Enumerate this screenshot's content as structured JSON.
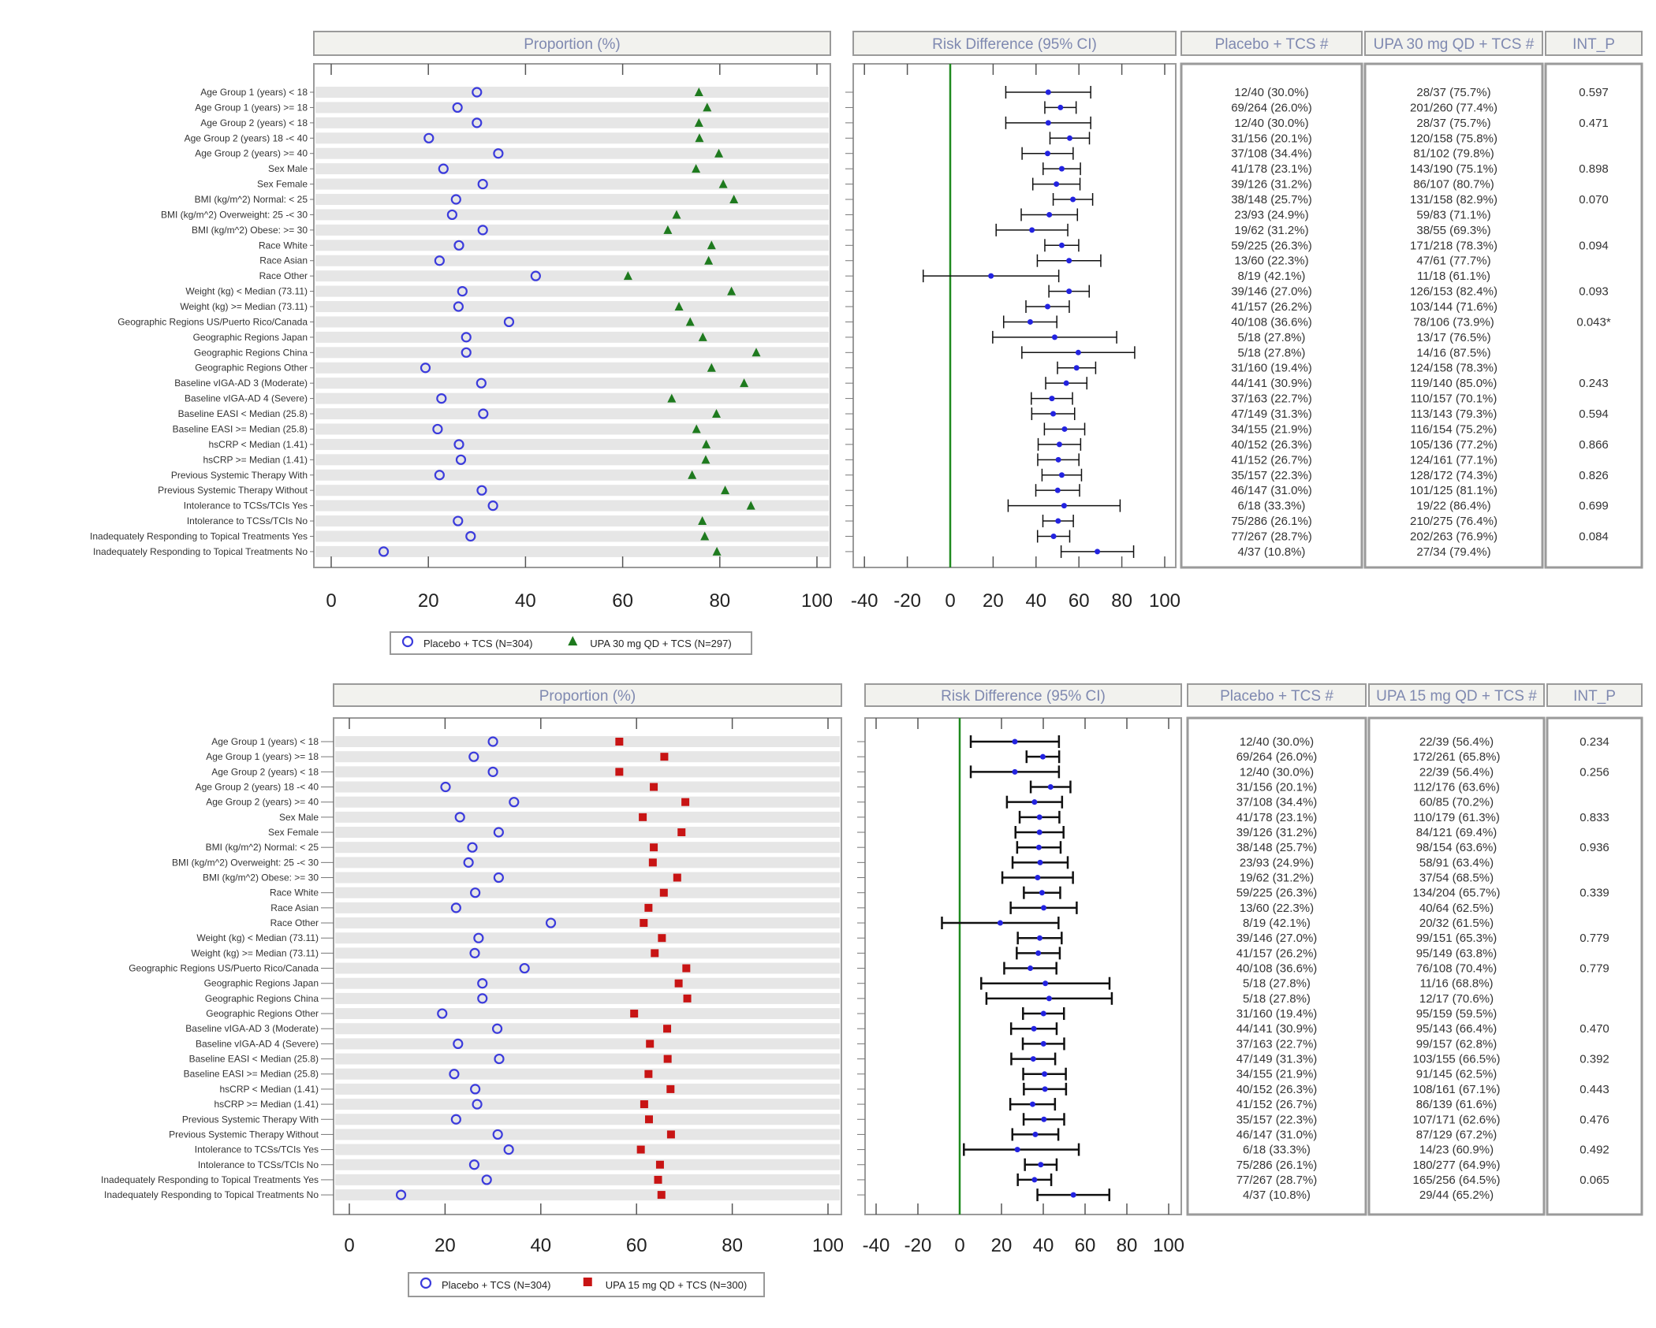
{
  "chart_data": [
    {
      "type": "forest",
      "panel_headers": {
        "proportion": "Proportion (%)",
        "risk_difference": "Risk Difference (95% CI)",
        "col_placebo": "Placebo + TCS #",
        "col_active": "UPA 30 mg QD + TCS #",
        "col_int_p": "INT_P"
      },
      "proportion_axis": {
        "ticks": [
          "0",
          "20",
          "40",
          "60",
          "80",
          "100"
        ],
        "xlim": [
          0,
          100
        ]
      },
      "rd_axis": {
        "ticks": [
          "-40",
          "-20",
          "0",
          "20",
          "40",
          "60",
          "80",
          "100"
        ],
        "xlim": [
          -45,
          105
        ],
        "reference_line": 0
      },
      "legend": {
        "placebo": "Placebo + TCS (N=304)",
        "active": "UPA 30 mg QD + TCS (N=297)"
      },
      "colors": {
        "placebo": "#3b3bdc",
        "active": "#1e7a1e",
        "rd_point": "#2323e0",
        "reference": "#1f8a1f",
        "band": "#e6e6e6"
      },
      "markers": {
        "placebo": "open-circle",
        "active": "triangle"
      },
      "rows": [
        {
          "label": "Age Group 1 (years) < 18",
          "placebo": "12/40 (30.0%)",
          "active": "28/37 (75.7%)",
          "rd": [
            45.7,
            25.9,
            65.5
          ],
          "int_p": "0.597"
        },
        {
          "label": "Age Group 1 (years) >= 18",
          "placebo": "69/264 (26.0%)",
          "active": "201/260 (77.4%)",
          "rd": [
            51.4,
            44.1,
            58.7
          ],
          "int_p": ""
        },
        {
          "label": "Age Group 2 (years) < 18",
          "placebo": "12/40 (30.0%)",
          "active": "28/37 (75.7%)",
          "rd": [
            45.7,
            25.9,
            65.5
          ],
          "int_p": "0.471"
        },
        {
          "label": "Age Group 2 (years) 18 -< 40",
          "placebo": "31/156 (20.1%)",
          "active": "120/158 (75.8%)",
          "rd": [
            55.7,
            46.5,
            64.9
          ],
          "int_p": ""
        },
        {
          "label": "Age Group 2 (years) >= 40",
          "placebo": "37/108 (34.4%)",
          "active": "81/102 (79.8%)",
          "rd": [
            45.4,
            33.5,
            57.3
          ],
          "int_p": ""
        },
        {
          "label": "Sex Male",
          "placebo": "41/178 (23.1%)",
          "active": "143/190 (75.1%)",
          "rd": [
            52.0,
            43.3,
            60.7
          ],
          "int_p": "0.898"
        },
        {
          "label": "Sex Female",
          "placebo": "39/126 (31.2%)",
          "active": "86/107 (80.7%)",
          "rd": [
            49.5,
            38.5,
            60.5
          ],
          "int_p": ""
        },
        {
          "label": "BMI (kg/m^2) Normal: < 25",
          "placebo": "38/148 (25.7%)",
          "active": "131/158 (82.9%)",
          "rd": [
            57.2,
            48.0,
            66.4
          ],
          "int_p": "0.070"
        },
        {
          "label": "BMI (kg/m^2) Overweight: 25 -< 30",
          "placebo": "23/93 (24.9%)",
          "active": "59/83 (71.1%)",
          "rd": [
            46.2,
            33.1,
            59.3
          ],
          "int_p": ""
        },
        {
          "label": "BMI (kg/m^2) Obese: >= 30",
          "placebo": "19/62 (31.2%)",
          "active": "38/55 (69.3%)",
          "rd": [
            38.1,
            21.4,
            54.8
          ],
          "int_p": ""
        },
        {
          "label": "Race White",
          "placebo": "59/225 (26.3%)",
          "active": "171/218 (78.3%)",
          "rd": [
            52.0,
            44.1,
            59.9
          ],
          "int_p": "0.094"
        },
        {
          "label": "Race Asian",
          "placebo": "13/60 (22.3%)",
          "active": "47/61 (77.7%)",
          "rd": [
            55.4,
            40.6,
            70.2
          ],
          "int_p": ""
        },
        {
          "label": "Race Other",
          "placebo": "8/19 (42.1%)",
          "active": "11/18 (61.1%)",
          "rd": [
            19.0,
            -12.6,
            50.6
          ],
          "int_p": ""
        },
        {
          "label": "Weight (kg) < Median (73.11)",
          "placebo": "39/146 (27.0%)",
          "active": "126/153 (82.4%)",
          "rd": [
            55.4,
            46.0,
            64.8
          ],
          "int_p": "0.093"
        },
        {
          "label": "Weight (kg) >= Median (73.11)",
          "placebo": "41/157 (26.2%)",
          "active": "103/144 (71.6%)",
          "rd": [
            45.4,
            35.3,
            55.5
          ],
          "int_p": ""
        },
        {
          "label": "Geographic Regions US/Puerto Rico/Canada",
          "placebo": "40/108 (36.6%)",
          "active": "78/106 (73.9%)",
          "rd": [
            37.3,
            24.9,
            49.7
          ],
          "int_p": "0.043*"
        },
        {
          "label": "Geographic Regions Japan",
          "placebo": "5/18 (27.8%)",
          "active": "13/17 (76.5%)",
          "rd": [
            48.7,
            19.8,
            77.6
          ],
          "int_p": ""
        },
        {
          "label": "Geographic Regions China",
          "placebo": "5/18 (27.8%)",
          "active": "14/16 (87.5%)",
          "rd": [
            59.7,
            33.4,
            86.0
          ],
          "int_p": ""
        },
        {
          "label": "Geographic Regions Other",
          "placebo": "31/160 (19.4%)",
          "active": "124/158 (78.3%)",
          "rd": [
            58.9,
            50.0,
            67.8
          ],
          "int_p": ""
        },
        {
          "label": "Baseline vIGA-AD 3 (Moderate)",
          "placebo": "44/141 (30.9%)",
          "active": "119/140 (85.0%)",
          "rd": [
            54.1,
            44.5,
            63.7
          ],
          "int_p": "0.243"
        },
        {
          "label": "Baseline vIGA-AD 4 (Severe)",
          "placebo": "37/163 (22.7%)",
          "active": "110/157 (70.1%)",
          "rd": [
            47.4,
            37.8,
            57.0
          ],
          "int_p": ""
        },
        {
          "label": "Baseline EASI < Median (25.8)",
          "placebo": "47/149 (31.3%)",
          "active": "113/143 (79.3%)",
          "rd": [
            48.0,
            38.0,
            58.0
          ],
          "int_p": "0.594"
        },
        {
          "label": "Baseline EASI >= Median (25.8)",
          "placebo": "34/155 (21.9%)",
          "active": "116/154 (75.2%)",
          "rd": [
            53.3,
            43.9,
            62.7
          ],
          "int_p": ""
        },
        {
          "label": "hsCRP < Median (1.41)",
          "placebo": "40/152 (26.3%)",
          "active": "105/136 (77.2%)",
          "rd": [
            50.9,
            41.0,
            60.8
          ],
          "int_p": "0.866"
        },
        {
          "label": "hsCRP >= Median (1.41)",
          "placebo": "41/152 (26.7%)",
          "active": "124/161 (77.1%)",
          "rd": [
            50.4,
            40.8,
            60.0
          ],
          "int_p": ""
        },
        {
          "label": "Previous Systemic Therapy With",
          "placebo": "35/157 (22.3%)",
          "active": "128/172 (74.3%)",
          "rd": [
            52.0,
            42.8,
            61.2
          ],
          "int_p": "0.826"
        },
        {
          "label": "Previous Systemic Therapy Without",
          "placebo": "46/147 (31.0%)",
          "active": "101/125 (81.1%)",
          "rd": [
            50.1,
            39.9,
            60.3
          ],
          "int_p": ""
        },
        {
          "label": "Intolerance to TCSs/TCIs Yes",
          "placebo": "6/18 (33.3%)",
          "active": "19/22 (86.4%)",
          "rd": [
            53.1,
            27.0,
            79.2
          ],
          "int_p": "0.699"
        },
        {
          "label": "Intolerance to TCSs/TCIs No",
          "placebo": "75/286 (26.1%)",
          "active": "210/275 (76.4%)",
          "rd": [
            50.3,
            43.2,
            57.4
          ],
          "int_p": ""
        },
        {
          "label": "Inadequately Responding to Topical Treatments Yes",
          "placebo": "77/267 (28.7%)",
          "active": "202/263 (76.9%)",
          "rd": [
            48.2,
            40.7,
            55.7
          ],
          "int_p": "0.084"
        },
        {
          "label": "Inadequately Responding to Topical Treatments No",
          "placebo": "4/37 (10.8%)",
          "active": "27/34 (79.4%)",
          "rd": [
            68.6,
            51.7,
            85.5
          ],
          "int_p": ""
        }
      ]
    },
    {
      "type": "forest",
      "panel_headers": {
        "proportion": "Proportion (%)",
        "risk_difference": "Risk Difference (95% CI)",
        "col_placebo": "Placebo + TCS #",
        "col_active": "UPA 15 mg QD + TCS #",
        "col_int_p": "INT_P"
      },
      "proportion_axis": {
        "ticks": [
          "0",
          "20",
          "40",
          "60",
          "80",
          "100"
        ],
        "xlim": [
          0,
          100
        ]
      },
      "rd_axis": {
        "ticks": [
          "-40",
          "-20",
          "0",
          "20",
          "40",
          "60",
          "80",
          "100"
        ],
        "xlim": [
          -45,
          105
        ],
        "reference_line": 0
      },
      "legend": {
        "placebo": "Placebo + TCS (N=304)",
        "active": "UPA 15 mg QD + TCS (N=300)"
      },
      "colors": {
        "placebo": "#3b3bdc",
        "active": "#c81414",
        "rd_point": "#2323e0",
        "reference": "#1f8a1f",
        "band": "#e6e6e6"
      },
      "markers": {
        "placebo": "open-circle",
        "active": "square"
      },
      "rows": [
        {
          "label": "Age Group 1 (years) < 18",
          "placebo": "12/40 (30.0%)",
          "active": "22/39 (56.4%)",
          "rd": [
            26.4,
            5.3,
            47.5
          ],
          "int_p": "0.234"
        },
        {
          "label": "Age Group 1 (years) >= 18",
          "placebo": "69/264 (26.0%)",
          "active": "172/261 (65.8%)",
          "rd": [
            39.8,
            32.0,
            47.6
          ],
          "int_p": ""
        },
        {
          "label": "Age Group 2 (years) < 18",
          "placebo": "12/40 (30.0%)",
          "active": "22/39 (56.4%)",
          "rd": [
            26.4,
            5.3,
            47.5
          ],
          "int_p": "0.256"
        },
        {
          "label": "Age Group 2 (years) 18 -< 40",
          "placebo": "31/156 (20.1%)",
          "active": "112/176 (63.6%)",
          "rd": [
            43.5,
            34.0,
            53.0
          ],
          "int_p": ""
        },
        {
          "label": "Age Group 2 (years) >= 40",
          "placebo": "37/108 (34.4%)",
          "active": "60/85 (70.2%)",
          "rd": [
            35.8,
            22.6,
            49.0
          ],
          "int_p": ""
        },
        {
          "label": "Sex Male",
          "placebo": "41/178 (23.1%)",
          "active": "110/179 (61.3%)",
          "rd": [
            38.2,
            28.7,
            47.7
          ],
          "int_p": "0.833"
        },
        {
          "label": "Sex Female",
          "placebo": "39/126 (31.2%)",
          "active": "84/121 (69.4%)",
          "rd": [
            38.2,
            26.7,
            49.7
          ],
          "int_p": ""
        },
        {
          "label": "BMI (kg/m^2) Normal: < 25",
          "placebo": "38/148 (25.7%)",
          "active": "98/154 (63.6%)",
          "rd": [
            37.9,
            27.5,
            48.3
          ],
          "int_p": "0.936"
        },
        {
          "label": "BMI (kg/m^2) Overweight: 25 -< 30",
          "placebo": "23/93 (24.9%)",
          "active": "58/91 (63.4%)",
          "rd": [
            38.5,
            25.3,
            51.7
          ],
          "int_p": ""
        },
        {
          "label": "BMI (kg/m^2) Obese: >= 30",
          "placebo": "19/62 (31.2%)",
          "active": "37/54 (68.5%)",
          "rd": [
            37.3,
            20.4,
            54.2
          ],
          "int_p": ""
        },
        {
          "label": "Race White",
          "placebo": "59/225 (26.3%)",
          "active": "134/204 (65.7%)",
          "rd": [
            39.4,
            30.7,
            48.1
          ],
          "int_p": "0.339"
        },
        {
          "label": "Race Asian",
          "placebo": "13/60 (22.3%)",
          "active": "40/64 (62.5%)",
          "rd": [
            40.2,
            24.4,
            56.0
          ],
          "int_p": ""
        },
        {
          "label": "Race Other",
          "placebo": "8/19 (42.1%)",
          "active": "20/32 (61.5%)",
          "rd": [
            19.4,
            -8.5,
            47.3
          ],
          "int_p": ""
        },
        {
          "label": "Weight (kg) < Median (73.11)",
          "placebo": "39/146 (27.0%)",
          "active": "99/151 (65.3%)",
          "rd": [
            38.3,
            27.8,
            48.8
          ],
          "int_p": "0.779"
        },
        {
          "label": "Weight (kg) >= Median (73.11)",
          "placebo": "41/157 (26.2%)",
          "active": "95/149 (63.8%)",
          "rd": [
            37.6,
            27.3,
            47.9
          ],
          "int_p": ""
        },
        {
          "label": "Geographic Regions US/Puerto Rico/Canada",
          "placebo": "40/108 (36.6%)",
          "active": "76/108 (70.4%)",
          "rd": [
            33.8,
            21.3,
            46.3
          ],
          "int_p": "0.779"
        },
        {
          "label": "Geographic Regions Japan",
          "placebo": "5/18 (27.8%)",
          "active": "11/16 (68.8%)",
          "rd": [
            41.0,
            10.3,
            71.7
          ],
          "int_p": ""
        },
        {
          "label": "Geographic Regions China",
          "placebo": "5/18 (27.8%)",
          "active": "12/17 (70.6%)",
          "rd": [
            42.8,
            12.8,
            72.8
          ],
          "int_p": ""
        },
        {
          "label": "Geographic Regions Other",
          "placebo": "31/160 (19.4%)",
          "active": "95/159 (59.5%)",
          "rd": [
            40.1,
            30.3,
            49.9
          ],
          "int_p": ""
        },
        {
          "label": "Baseline vIGA-AD 3 (Moderate)",
          "placebo": "44/141 (30.9%)",
          "active": "95/143 (66.4%)",
          "rd": [
            35.5,
            24.6,
            46.4
          ],
          "int_p": "0.470"
        },
        {
          "label": "Baseline vIGA-AD 4 (Severe)",
          "placebo": "37/163 (22.7%)",
          "active": "99/157 (62.8%)",
          "rd": [
            40.1,
            30.2,
            50.0
          ],
          "int_p": ""
        },
        {
          "label": "Baseline EASI < Median (25.8)",
          "placebo": "47/149 (31.3%)",
          "active": "103/155 (66.5%)",
          "rd": [
            35.2,
            24.7,
            45.7
          ],
          "int_p": "0.392"
        },
        {
          "label": "Baseline EASI >= Median (25.8)",
          "placebo": "34/155 (21.9%)",
          "active": "91/145 (62.5%)",
          "rd": [
            40.6,
            30.4,
            50.8
          ],
          "int_p": ""
        },
        {
          "label": "hsCRP < Median (1.41)",
          "placebo": "40/152 (26.3%)",
          "active": "108/161 (67.1%)",
          "rd": [
            40.8,
            30.7,
            50.9
          ],
          "int_p": "0.443"
        },
        {
          "label": "hsCRP >= Median (1.41)",
          "placebo": "41/152 (26.7%)",
          "active": "86/139 (61.6%)",
          "rd": [
            34.9,
            24.2,
            45.6
          ],
          "int_p": ""
        },
        {
          "label": "Previous Systemic Therapy With",
          "placebo": "35/157 (22.3%)",
          "active": "107/171 (62.6%)",
          "rd": [
            40.3,
            30.6,
            50.0
          ],
          "int_p": "0.476"
        },
        {
          "label": "Previous Systemic Therapy Without",
          "placebo": "46/147 (31.0%)",
          "active": "87/129 (67.2%)",
          "rd": [
            36.2,
            25.2,
            47.2
          ],
          "int_p": ""
        },
        {
          "label": "Intolerance to TCSs/TCIs Yes",
          "placebo": "6/18 (33.3%)",
          "active": "14/23 (60.9%)",
          "rd": [
            27.6,
            2.0,
            57.0
          ],
          "int_p": "0.492"
        },
        {
          "label": "Intolerance to TCSs/TCIs No",
          "placebo": "75/286 (26.1%)",
          "active": "180/277 (64.9%)",
          "rd": [
            38.8,
            31.2,
            46.4
          ],
          "int_p": ""
        },
        {
          "label": "Inadequately Responding to Topical Treatments Yes",
          "placebo": "77/267 (28.7%)",
          "active": "165/256 (64.5%)",
          "rd": [
            35.8,
            27.8,
            43.8
          ],
          "int_p": "0.065"
        },
        {
          "label": "Inadequately Responding to Topical Treatments No",
          "placebo": "4/37 (10.8%)",
          "active": "29/44 (65.2%)",
          "rd": [
            54.4,
            37.2,
            71.6
          ],
          "int_p": ""
        }
      ]
    }
  ]
}
